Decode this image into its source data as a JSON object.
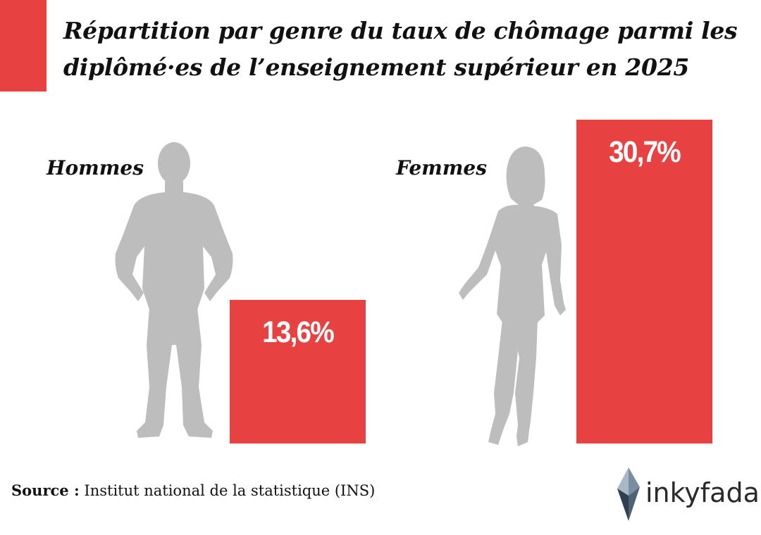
{
  "title": "Répartition par genre du taux de chômage parmi les diplômé·es de l’enseignement supérieur en 2025",
  "colors": {
    "accent": "#e84142",
    "silhouette": "#bdbdbd",
    "text": "#111111"
  },
  "chart_data": {
    "type": "bar",
    "categories": [
      "Hommes",
      "Femmes"
    ],
    "values": [
      13.6,
      30.7
    ],
    "value_labels": [
      "13,6%",
      "30,7%"
    ],
    "unit": "%",
    "title": "Répartition par genre du taux de chômage parmi les diplômé·es de l’enseignement supérieur en 2025",
    "xlabel": "",
    "ylabel": "",
    "ylim": [
      0,
      30.7
    ],
    "grid": false
  },
  "icons": {
    "male": "male-silhouette-icon",
    "female": "female-silhouette-icon",
    "brand": "inkyfada-logo-icon"
  },
  "source": {
    "prefix": "Source :",
    "text": "Institut national de la statistique (INS)"
  },
  "brand": {
    "name": "inkyfada"
  }
}
